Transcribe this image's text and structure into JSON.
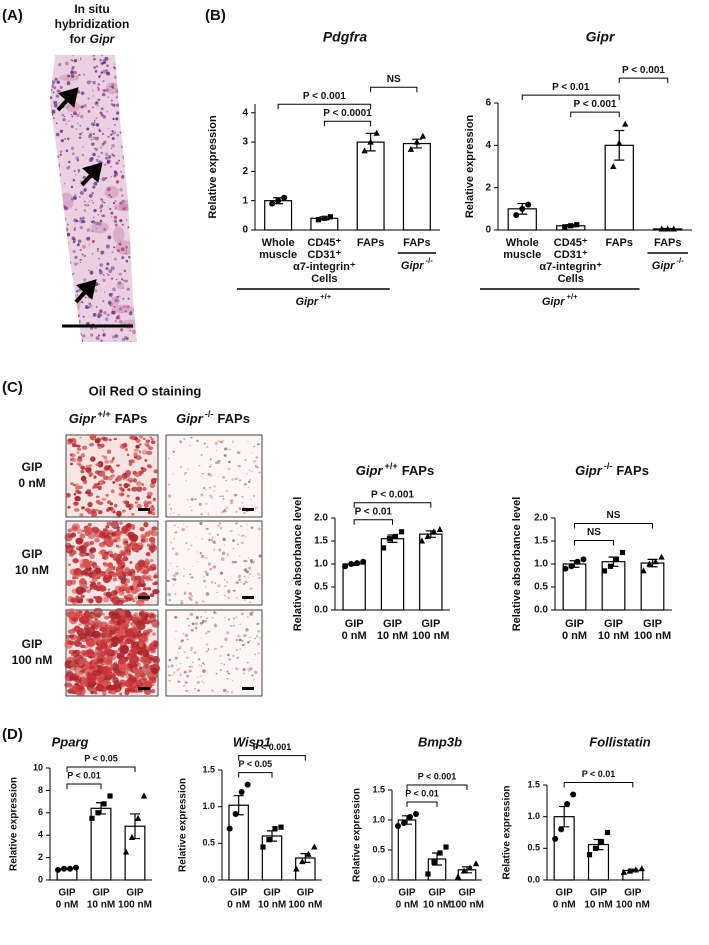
{
  "panels": {
    "A": {
      "label": "(A)",
      "title_lines": [
        "In situ",
        "hybridization"
      ],
      "title_for": "for",
      "title_gene": "Gipr"
    },
    "B": {
      "label": "(B)"
    },
    "C": {
      "label": "(C)",
      "title": "Oil Red O staining",
      "columns": [
        {
          "gene": "Gipr",
          "genotype": "+/+",
          "suffix": "FAPs"
        },
        {
          "gene": "Gipr",
          "genotype": "-/-",
          "suffix": "FAPs"
        }
      ],
      "rows": [
        [
          "GIP",
          "0 nM"
        ],
        [
          "GIP",
          "10 nM"
        ],
        [
          "GIP",
          "100 nM"
        ]
      ]
    },
    "D": {
      "label": "(D)"
    }
  },
  "chart_data": [
    {
      "type": "bar",
      "title": "Pdgfra",
      "y_label": "Relative expression",
      "color": "#ffffff",
      "edge_color": "#000000",
      "categories": [
        [
          "Whole",
          "muscle"
        ],
        [
          "CD45⁺",
          "CD31⁺",
          "α7-integrin⁺",
          "Cells"
        ],
        [
          "FAPs"
        ],
        [
          "FAPs"
        ]
      ],
      "values": [
        1.0,
        0.4,
        3.0,
        2.95
      ],
      "errors": [
        0.1,
        0.05,
        0.3,
        0.15
      ],
      "points": [
        [
          0.9,
          1.0,
          1.1
        ],
        [
          0.35,
          0.4,
          0.45
        ],
        [
          2.7,
          3.0,
          3.3
        ],
        [
          2.75,
          3.0,
          3.2
        ]
      ],
      "ylim": [
        0,
        4.3
      ],
      "yticks": [
        0,
        1,
        2,
        3,
        4
      ],
      "groups": [
        {
          "label": {
            "gene": "Gipr",
            "genotype": "+/+"
          },
          "categories": [
            0,
            1,
            2
          ]
        },
        {
          "label": {
            "gene": "Gipr",
            "genotype": "-/-"
          },
          "categories": [
            3
          ]
        }
      ],
      "comparisons": [
        {
          "label": "P < 0.0001",
          "between": [
            1,
            2
          ]
        },
        {
          "label": "P < 0.001",
          "between": [
            0,
            2
          ]
        },
        {
          "label": "NS",
          "between": [
            2,
            3
          ]
        }
      ]
    },
    {
      "type": "bar",
      "title": "Gipr",
      "y_label": "Relative expression",
      "color": "#ffffff",
      "edge_color": "#000000",
      "categories": [
        [
          "Whole",
          "muscle"
        ],
        [
          "CD45⁺",
          "CD31⁺",
          "α7-integrin⁺",
          "Cells"
        ],
        [
          "FAPs"
        ],
        [
          "FAPs"
        ]
      ],
      "values": [
        1.0,
        0.2,
        4.0,
        0.05
      ],
      "errors": [
        0.25,
        0.05,
        0.7,
        0.02
      ],
      "points": [
        [
          0.7,
          1.0,
          1.2
        ],
        [
          0.15,
          0.2,
          0.25
        ],
        [
          3.0,
          4.1,
          5.0
        ],
        [
          0.05,
          0.05,
          0.05
        ]
      ],
      "ylim": [
        0,
        6
      ],
      "yticks": [
        0,
        2,
        4,
        6
      ],
      "groups": [
        {
          "label": {
            "gene": "Gipr",
            "genotype": "+/+"
          },
          "categories": [
            0,
            1,
            2
          ]
        },
        {
          "label": {
            "gene": "Gipr",
            "genotype": "-/-"
          },
          "categories": [
            3
          ]
        }
      ],
      "comparisons": [
        {
          "label": "P < 0.001",
          "between": [
            1,
            2
          ]
        },
        {
          "label": "P < 0.01",
          "between": [
            0,
            2
          ]
        },
        {
          "label": "P < 0.001",
          "between": [
            2,
            3
          ]
        }
      ]
    },
    {
      "type": "bar",
      "title": {
        "gene": "Gipr",
        "genotype": "+/+",
        "suffix": "FAPs"
      },
      "y_label": "Relative absorbance level",
      "color": "#ffffff",
      "edge_color": "#000000",
      "categories": [
        [
          "GIP",
          "0 nM"
        ],
        [
          "GIP",
          "10 nM"
        ],
        [
          "GIP",
          "100 nM"
        ]
      ],
      "values": [
        1.0,
        1.55,
        1.65
      ],
      "errors": [
        0.03,
        0.08,
        0.07
      ],
      "points": [
        [
          0.95,
          1.0,
          1.02,
          1.05
        ],
        [
          1.35,
          1.55,
          1.6,
          1.7
        ],
        [
          1.5,
          1.6,
          1.7,
          1.75
        ]
      ],
      "ylim": [
        0,
        2.0
      ],
      "yticks": [
        {
          "value": 0,
          "label": "0.0"
        },
        {
          "value": 0.5,
          "label": "0.5"
        },
        {
          "value": 1,
          "label": "1.0"
        },
        {
          "value": 1.5,
          "label": "1.5"
        },
        {
          "value": 2,
          "label": "2.0"
        }
      ],
      "comparisons": [
        {
          "label": "P < 0.01",
          "between": [
            0,
            1
          ]
        },
        {
          "label": "P < 0.001",
          "between": [
            0,
            2
          ]
        }
      ]
    },
    {
      "type": "bar",
      "title": {
        "gene": "Gipr",
        "genotype": "-/-",
        "suffix": "FAPs"
      },
      "y_label": "Relative absorbance level",
      "color": "#ffffff",
      "edge_color": "#000000",
      "categories": [
        [
          "GIP",
          "0 nM"
        ],
        [
          "GIP",
          "10 nM"
        ],
        [
          "GIP",
          "100 nM"
        ]
      ],
      "values": [
        1.0,
        1.05,
        1.02
      ],
      "errors": [
        0.07,
        0.1,
        0.08
      ],
      "points": [
        [
          0.9,
          0.95,
          1.05,
          1.1
        ],
        [
          0.85,
          0.95,
          1.1,
          1.25
        ],
        [
          0.85,
          1.0,
          1.05,
          1.15
        ]
      ],
      "ylim": [
        0,
        2.0
      ],
      "yticks": [
        {
          "value": 0,
          "label": "0.0"
        },
        {
          "value": 0.5,
          "label": "0.5"
        },
        {
          "value": 1,
          "label": "1.0"
        },
        {
          "value": 1.5,
          "label": "1.5"
        },
        {
          "value": 2,
          "label": "2.0"
        }
      ],
      "comparisons": [
        {
          "label": "NS",
          "between": [
            0,
            1
          ]
        },
        {
          "label": "NS",
          "between": [
            0,
            2
          ]
        }
      ]
    },
    {
      "type": "bar",
      "title": "Pparg",
      "y_label": "Relative expression",
      "color": "#ffffff",
      "edge_color": "#000000",
      "categories": [
        [
          "GIP",
          "0 nM"
        ],
        [
          "GIP",
          "10 nM"
        ],
        [
          "GIP",
          "100 nM"
        ]
      ],
      "values": [
        1.0,
        6.4,
        4.8
      ],
      "errors": [
        0.05,
        0.5,
        1.1
      ],
      "points": [
        [
          0.9,
          1.0,
          1.0,
          1.1
        ],
        [
          5.5,
          6.0,
          6.8,
          7.5
        ],
        [
          2.5,
          3.8,
          5.5,
          7.5
        ]
      ],
      "ylim": [
        0,
        10
      ],
      "yticks": [
        0,
        2,
        4,
        6,
        8,
        10
      ],
      "comparisons": [
        {
          "label": "P < 0.01",
          "between": [
            0,
            1
          ]
        },
        {
          "label": "P < 0.05",
          "between": [
            0,
            2
          ]
        }
      ]
    },
    {
      "type": "bar",
      "title": "Wisp1",
      "y_label": "Relative expression",
      "color": "#ffffff",
      "edge_color": "#000000",
      "categories": [
        [
          "GIP",
          "0 nM"
        ],
        [
          "GIP",
          "10 nM"
        ],
        [
          "GIP",
          "100 nM"
        ]
      ],
      "values": [
        1.02,
        0.6,
        0.3
      ],
      "errors": [
        0.13,
        0.07,
        0.06
      ],
      "points": [
        [
          0.7,
          0.9,
          1.2,
          1.3
        ],
        [
          0.45,
          0.55,
          0.7,
          0.72
        ],
        [
          0.15,
          0.25,
          0.35,
          0.45
        ]
      ],
      "ylim": [
        0,
        1.5
      ],
      "yticks": [
        {
          "value": 0,
          "label": "0.0"
        },
        {
          "value": 0.5,
          "label": "0.5"
        },
        {
          "value": 1,
          "label": "1.0"
        },
        {
          "value": 1.5,
          "label": "1.5"
        }
      ],
      "comparisons": [
        {
          "label": "P < 0.05",
          "between": [
            0,
            1
          ]
        },
        {
          "label": "P < 0.001",
          "between": [
            0,
            2
          ]
        }
      ]
    },
    {
      "type": "bar",
      "title": "Bmp3b",
      "y_label": "Relative expression",
      "color": "#ffffff",
      "edge_color": "#000000",
      "categories": [
        [
          "GIP",
          "0 nM"
        ],
        [
          "GIP",
          "10 nM"
        ],
        [
          "GIP",
          "100 nM"
        ]
      ],
      "values": [
        1.0,
        0.35,
        0.17
      ],
      "errors": [
        0.07,
        0.1,
        0.05
      ],
      "points": [
        [
          0.9,
          0.95,
          1.05,
          1.1
        ],
        [
          0.1,
          0.3,
          0.45,
          0.55
        ],
        [
          0.05,
          0.15,
          0.2,
          0.27
        ]
      ],
      "ylim": [
        0,
        1.5
      ],
      "yticks": [
        {
          "value": 0,
          "label": "0.0"
        },
        {
          "value": 0.5,
          "label": "0.5"
        },
        {
          "value": 1,
          "label": "1.0"
        },
        {
          "value": 1.5,
          "label": "1.5"
        }
      ],
      "comparisons": [
        {
          "label": "P < 0.01",
          "between": [
            0,
            1
          ]
        },
        {
          "label": "P < 0.001",
          "between": [
            0,
            2
          ]
        }
      ]
    },
    {
      "type": "bar",
      "title": "Follistatin",
      "y_label": "Relative expression",
      "color": "#ffffff",
      "edge_color": "#000000",
      "categories": [
        [
          "GIP",
          "0 nM"
        ],
        [
          "GIP",
          "10 nM"
        ],
        [
          "GIP",
          "100 nM"
        ]
      ],
      "values": [
        1.0,
        0.56,
        0.15
      ],
      "errors": [
        0.16,
        0.08,
        0.02
      ],
      "points": [
        [
          0.65,
          0.8,
          1.2,
          1.35
        ],
        [
          0.4,
          0.5,
          0.6,
          0.75
        ],
        [
          0.12,
          0.14,
          0.16,
          0.18
        ]
      ],
      "ylim": [
        0,
        1.5
      ],
      "yticks": [
        {
          "value": 0,
          "label": "0.0"
        },
        {
          "value": 0.5,
          "label": "0.5"
        },
        {
          "value": 1,
          "label": "1.0"
        },
        {
          "value": 1.5,
          "label": "1.5"
        }
      ],
      "comparisons": [
        {
          "label": "P < 0.01",
          "between": [
            0,
            2
          ]
        }
      ]
    }
  ]
}
